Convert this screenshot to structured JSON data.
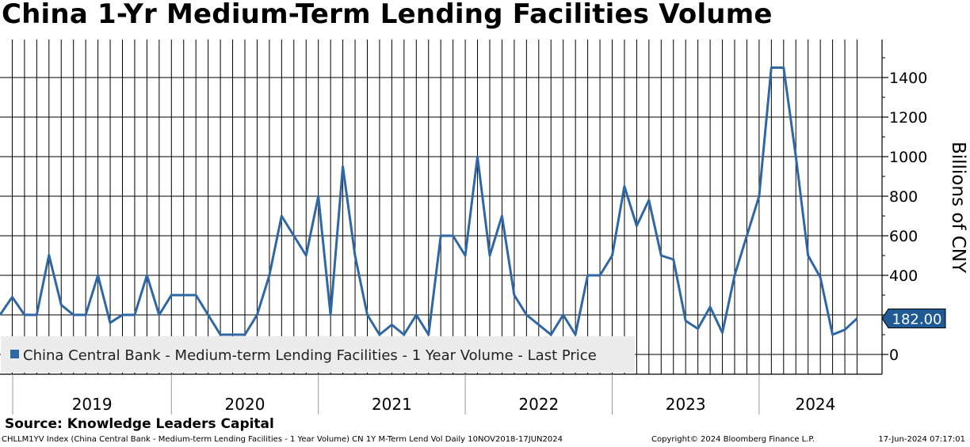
{
  "chart_data": {
    "type": "line",
    "title": "China 1-Yr Medium-Term Lending Facilities Volume",
    "ylabel": "Billions of CNY",
    "ylim": [
      -60,
      1560
    ],
    "yticks": [
      0,
      200,
      400,
      600,
      800,
      1000,
      1200,
      1400
    ],
    "ytick_labels": [
      "0",
      "200",
      "400",
      "600",
      "800",
      "1000",
      "1200",
      "1400"
    ],
    "x_start": "2018-11",
    "year_labels": [
      "2019",
      "2020",
      "2021",
      "2022",
      "2023",
      "2024"
    ],
    "series": [
      {
        "name": "China Central Bank - Medium-term Lending Facilities - 1 Year Volume - Last Price",
        "color": "#2e67a6",
        "values": [
          200,
          290,
          200,
          200,
          502,
          250,
          200,
          200,
          400,
          160,
          200,
          200,
          400,
          200,
          300,
          300,
          300,
          200,
          100,
          100,
          100,
          200,
          400,
          700,
          600,
          500,
          800,
          200,
          950,
          500,
          200,
          100,
          150,
          100,
          200,
          100,
          600,
          600,
          500,
          1000,
          500,
          700,
          300,
          200,
          150,
          100,
          200,
          100,
          400,
          400,
          500,
          850,
          650,
          780,
          500,
          480,
          170,
          130,
          240,
          110,
          400,
          600,
          800,
          1450,
          1450,
          1000,
          500,
          390,
          100,
          125,
          182
        ]
      }
    ],
    "last_value_label": "182.00",
    "legend_position": "bottom-left"
  },
  "source": "Source: Knowledge Leaders Capital",
  "footer": {
    "left": "CHLLM1YV Index (China Central Bank - Medium-term Lending Facilities - 1 Year Volume) CN 1Y M-Term Lend Vol  Daily 10NOV2018-17JUN2024",
    "mid": "Copyright© 2024 Bloomberg Finance L.P.",
    "right": "17-Jun-2024 07:17:01"
  }
}
